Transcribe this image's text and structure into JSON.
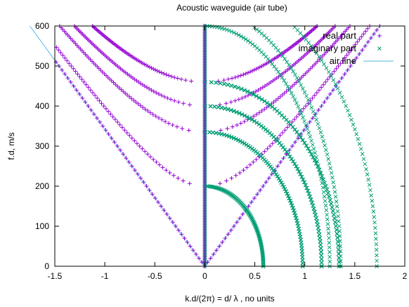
{
  "chart_data": {
    "type": "scatter",
    "title": "Acoustic waveguide (air tube)",
    "xlabel": "k.d/(2π) = d/ λ , no units",
    "ylabel": "f.d, m/s",
    "xlim": [
      -1.5,
      2
    ],
    "ylim": [
      0,
      600
    ],
    "x_ticks": [
      "-1.5",
      "-1",
      "-0.5",
      "0",
      "0.5",
      "1",
      "1.5",
      "2"
    ],
    "x_tick_values": [
      -1.5,
      -1,
      -0.5,
      0,
      0.5,
      1,
      1.5,
      2
    ],
    "y_ticks": [
      "0",
      "100",
      "200",
      "300",
      "400",
      "500",
      "600"
    ],
    "y_tick_values": [
      0,
      100,
      200,
      300,
      400,
      500,
      600
    ],
    "grid": false,
    "legend": "top-right",
    "speed_of_sound": 343,
    "cutoffs": [
      0,
      200,
      335,
      400,
      460
    ],
    "series": [
      {
        "name": "real part",
        "marker": "plus",
        "color": "#9400d3"
      },
      {
        "name": "imaginary part",
        "marker": "cross",
        "color": "#009e73"
      },
      {
        "name": "air line",
        "marker": "line",
        "color": "#56b4e9"
      }
    ]
  }
}
